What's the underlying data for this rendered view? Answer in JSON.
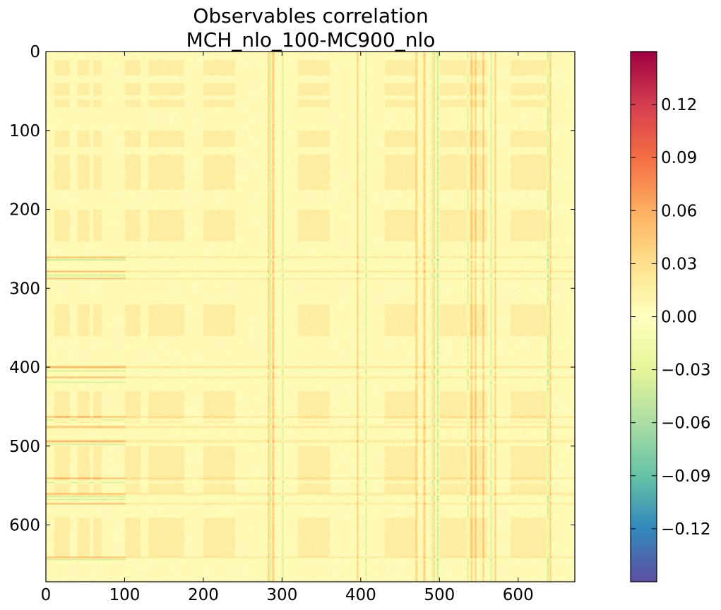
{
  "chart_data": {
    "type": "heatmap",
    "title_lines": [
      "Observables correlation",
      "MCH_nlo_100-MC900_nlo"
    ],
    "xlabel": "",
    "ylabel": "",
    "n": 672,
    "x_range": [
      0,
      672
    ],
    "y_range": [
      0,
      672
    ],
    "y_inverted": true,
    "x_ticks": [
      0,
      100,
      200,
      300,
      400,
      500,
      600
    ],
    "x_tick_labels": [
      "0",
      "100",
      "200",
      "300",
      "400",
      "500",
      "600"
    ],
    "y_ticks": [
      0,
      100,
      200,
      300,
      400,
      500,
      600
    ],
    "y_tick_labels": [
      "0",
      "100",
      "200",
      "300",
      "400",
      "500",
      "600"
    ],
    "colormap": "Spectral",
    "colorbar": {
      "vmin": -0.15,
      "vmax": 0.15,
      "ticks": [
        0.12,
        0.09,
        0.06,
        0.03,
        0.0,
        -0.03,
        -0.06,
        -0.09,
        -0.12
      ],
      "tick_labels": [
        "0.12",
        "0.09",
        "0.06",
        "0.03",
        "0.00",
        "−0.03",
        "−0.06",
        "−0.09",
        "−0.12"
      ],
      "colors": [
        "#5e4fa2",
        "#3288bd",
        "#66c2a5",
        "#abdda4",
        "#e6f598",
        "#ffffbf",
        "#fee08b",
        "#fdae61",
        "#f46d43",
        "#d53e4f",
        "#9e0142"
      ]
    },
    "background_value": 0.005,
    "block_bands": [
      [
        10,
        30
      ],
      [
        40,
        55
      ],
      [
        60,
        70
      ],
      [
        100,
        120
      ],
      [
        130,
        175
      ],
      [
        200,
        240
      ],
      [
        320,
        360
      ],
      [
        430,
        470
      ],
      [
        500,
        560
      ],
      [
        590,
        640
      ]
    ],
    "positive_stripes": [
      282,
      288,
      395,
      470,
      475,
      480,
      492,
      540,
      545,
      555,
      570,
      640
    ],
    "negative_stripes": [
      285,
      300,
      406,
      475,
      490,
      497,
      535,
      565,
      637
    ],
    "row_positive_stripes": [
      260,
      278,
      287,
      399,
      412,
      462,
      475,
      493,
      540,
      560,
      572,
      640
    ],
    "row_negative_stripes": [
      263,
      282,
      285,
      404,
      418,
      466,
      497,
      545,
      563,
      567,
      643
    ],
    "row_stripe_x_range": [
      0,
      100
    ]
  }
}
